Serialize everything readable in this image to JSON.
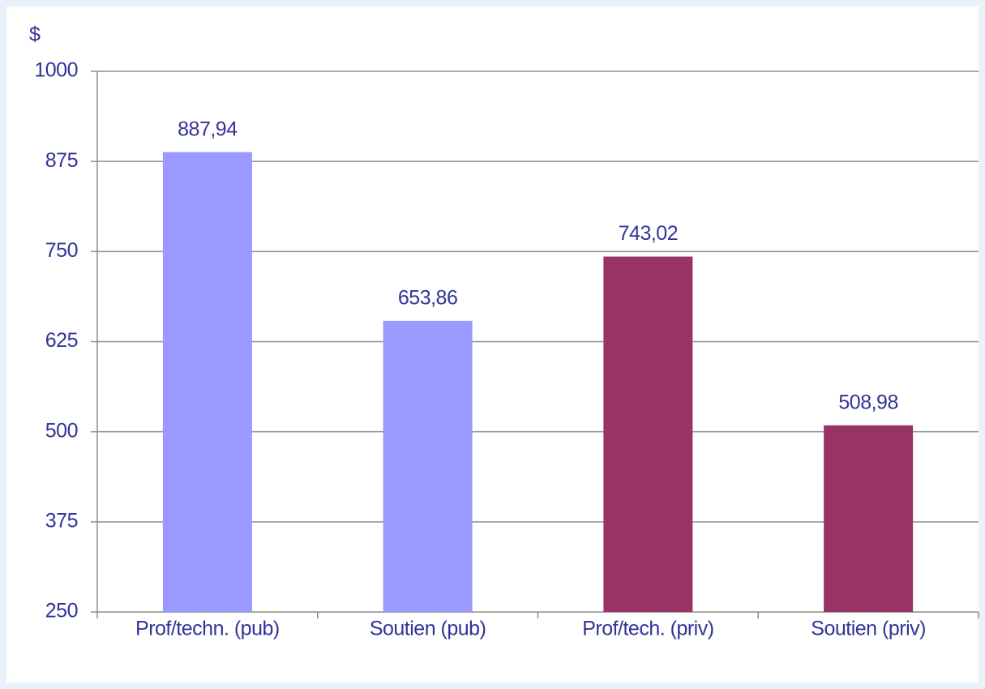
{
  "chart_data": {
    "type": "bar",
    "y_axis_label": "$",
    "categories": [
      "Prof/techn. (pub)",
      "Soutien (pub)",
      "Prof/tech. (priv)",
      "Soutien (priv)"
    ],
    "values": [
      887.94,
      653.86,
      743.02,
      508.98
    ],
    "value_labels": [
      "887,94",
      "653,86",
      "743,02",
      "508,98"
    ],
    "colors": [
      "#9999ff",
      "#9999ff",
      "#993366",
      "#993366"
    ],
    "ylim": [
      250,
      1000
    ],
    "yticks": [
      250,
      375,
      500,
      625,
      750,
      875,
      1000
    ],
    "grid": true
  }
}
